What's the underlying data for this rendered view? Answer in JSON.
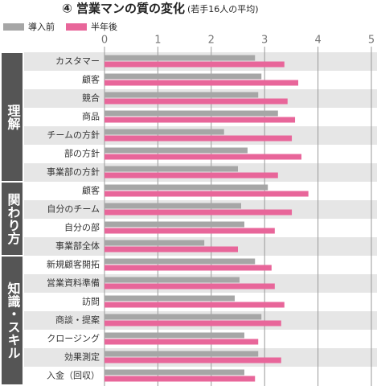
{
  "chart_data": {
    "type": "bar",
    "orientation": "horizontal",
    "title": "④ 営業マンの質の変化",
    "subtitle": "(若手16人の平均)",
    "groups": [
      {
        "name": "理解",
        "categories": [
          "カスタマー",
          "顧客",
          "競合",
          "商品",
          "チームの方針",
          "部の方針",
          "事業部の方針"
        ]
      },
      {
        "name": "関わり方",
        "categories": [
          "顧客",
          "自分のチーム",
          "自分の部",
          "事業部全体"
        ]
      },
      {
        "name": "知識・スキル",
        "categories": [
          "新規顧客開拓",
          "営業資料準備",
          "訪問",
          "商談・提案",
          "クロージング",
          "効果測定",
          "入金（回収）"
        ]
      }
    ],
    "series": [
      {
        "name": "導入前",
        "color": "#a6a6a6",
        "values": [
          2.82,
          2.94,
          2.88,
          3.25,
          2.24,
          2.68,
          2.5,
          3.06,
          2.56,
          2.62,
          1.87,
          2.82,
          2.53,
          2.44,
          2.94,
          2.62,
          2.88,
          2.62
        ]
      },
      {
        "name": "半年後",
        "color": "#e8669a",
        "values": [
          3.37,
          3.63,
          3.43,
          3.57,
          3.51,
          3.69,
          3.25,
          3.82,
          3.51,
          3.19,
          2.5,
          3.13,
          3.19,
          3.37,
          3.31,
          2.88,
          3.31,
          2.82
        ]
      }
    ],
    "xlim": [
      0,
      5
    ],
    "xticks": [
      0,
      1,
      2,
      3,
      4,
      5
    ],
    "grid": true
  }
}
